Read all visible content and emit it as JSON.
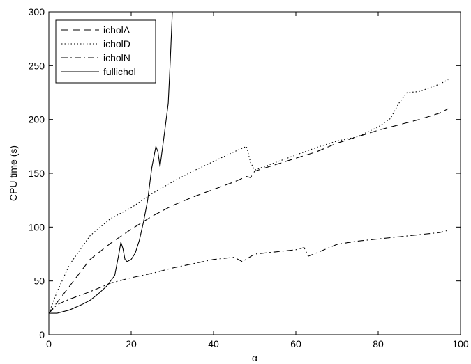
{
  "chart_data": {
    "type": "line",
    "title": "",
    "xlabel": "α",
    "ylabel": "CPU time (s)",
    "xlim": [
      0,
      100
    ],
    "ylim": [
      0,
      300
    ],
    "xticks": [
      0,
      20,
      40,
      60,
      80,
      100
    ],
    "yticks": [
      0,
      50,
      100,
      150,
      200,
      250,
      300
    ],
    "grid": false,
    "legend_position": "top-left",
    "series": [
      {
        "name": "icholA",
        "style": "dashed",
        "color": "#000000",
        "points": [
          [
            0,
            20
          ],
          [
            2,
            30
          ],
          [
            5,
            45
          ],
          [
            10,
            70
          ],
          [
            15,
            85
          ],
          [
            20,
            98
          ],
          [
            25,
            110
          ],
          [
            30,
            120
          ],
          [
            35,
            128
          ],
          [
            40,
            135
          ],
          [
            45,
            142
          ],
          [
            48,
            147
          ],
          [
            49,
            146
          ],
          [
            50,
            152
          ],
          [
            55,
            158
          ],
          [
            60,
            164
          ],
          [
            65,
            170
          ],
          [
            70,
            178
          ],
          [
            75,
            184
          ],
          [
            80,
            190
          ],
          [
            85,
            195
          ],
          [
            90,
            200
          ],
          [
            95,
            206
          ],
          [
            97,
            210
          ]
        ]
      },
      {
        "name": "icholD",
        "style": "dotted",
        "color": "#000000",
        "points": [
          [
            0,
            20
          ],
          [
            2,
            40
          ],
          [
            5,
            65
          ],
          [
            10,
            92
          ],
          [
            15,
            108
          ],
          [
            20,
            118
          ],
          [
            25,
            131
          ],
          [
            30,
            142
          ],
          [
            35,
            152
          ],
          [
            40,
            161
          ],
          [
            45,
            170
          ],
          [
            48,
            175
          ],
          [
            49,
            160
          ],
          [
            50,
            153
          ],
          [
            55,
            160
          ],
          [
            60,
            167
          ],
          [
            65,
            174
          ],
          [
            70,
            180
          ],
          [
            75,
            184
          ],
          [
            80,
            193
          ],
          [
            83,
            201
          ],
          [
            85,
            215
          ],
          [
            87,
            225
          ],
          [
            90,
            226
          ],
          [
            95,
            233
          ],
          [
            97,
            237
          ]
        ]
      },
      {
        "name": "icholN",
        "style": "dashdot",
        "color": "#000000",
        "points": [
          [
            0,
            20
          ],
          [
            2,
            28
          ],
          [
            5,
            33
          ],
          [
            10,
            40
          ],
          [
            15,
            48
          ],
          [
            20,
            53
          ],
          [
            25,
            57
          ],
          [
            30,
            62
          ],
          [
            35,
            66
          ],
          [
            40,
            70
          ],
          [
            45,
            72
          ],
          [
            47,
            68
          ],
          [
            50,
            75
          ],
          [
            55,
            77
          ],
          [
            60,
            79
          ],
          [
            62,
            81
          ],
          [
            63,
            73
          ],
          [
            65,
            76
          ],
          [
            70,
            84
          ],
          [
            75,
            87
          ],
          [
            80,
            89
          ],
          [
            85,
            91
          ],
          [
            90,
            93
          ],
          [
            95,
            95
          ],
          [
            97,
            97
          ]
        ]
      },
      {
        "name": "fullichol",
        "style": "solid",
        "color": "#000000",
        "points": [
          [
            0,
            20
          ],
          [
            2,
            20
          ],
          [
            5,
            23
          ],
          [
            8,
            28
          ],
          [
            10,
            32
          ],
          [
            12,
            38
          ],
          [
            14,
            45
          ],
          [
            16,
            55
          ],
          [
            17,
            75
          ],
          [
            17.5,
            86
          ],
          [
            18,
            80
          ],
          [
            18.5,
            70
          ],
          [
            19,
            68
          ],
          [
            20,
            70
          ],
          [
            21,
            76
          ],
          [
            22,
            88
          ],
          [
            23,
            105
          ],
          [
            24,
            125
          ],
          [
            25,
            155
          ],
          [
            26,
            175
          ],
          [
            26.5,
            170
          ],
          [
            27,
            156
          ],
          [
            28,
            185
          ],
          [
            29,
            215
          ],
          [
            29.5,
            255
          ],
          [
            30,
            300
          ]
        ]
      }
    ]
  }
}
